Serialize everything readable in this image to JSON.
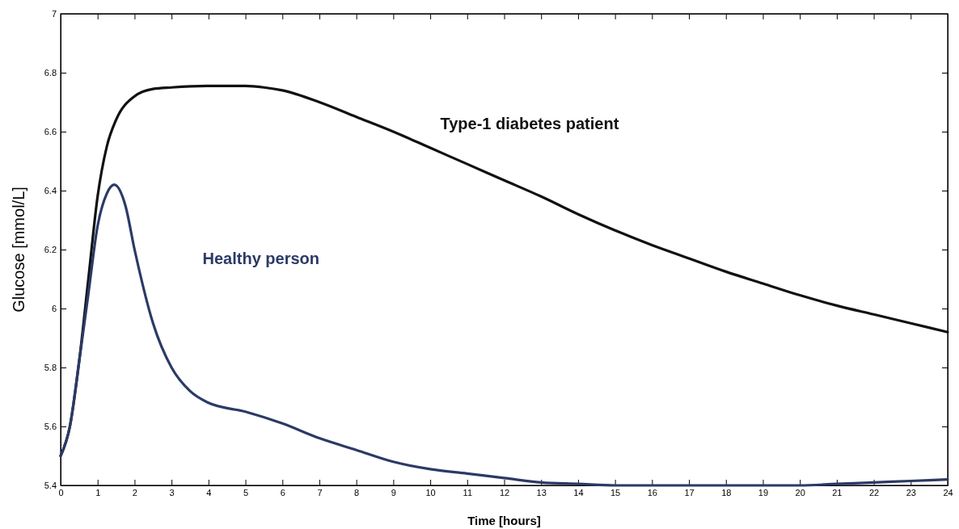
{
  "chart_data": {
    "type": "line",
    "xlabel": "Time [hours]",
    "ylabel": "Glucose [mmol/L]",
    "xlim": [
      0,
      24
    ],
    "xticks": [
      0,
      1,
      2,
      3,
      4,
      5,
      6,
      7,
      8,
      9,
      10,
      11,
      12,
      13,
      14,
      15,
      16,
      17,
      18,
      19,
      20,
      21,
      22,
      23,
      24
    ],
    "ylim": [
      5.4,
      7
    ],
    "yticks": [
      5.4,
      5.6,
      5.8,
      6,
      6.2,
      6.4,
      6.6,
      6.8,
      7
    ],
    "grid": false,
    "legend": false,
    "line_style": "solid",
    "series": [
      {
        "name": "Type-1 diabetes patient",
        "color": "#111111",
        "x": [
          0,
          0.25,
          0.5,
          0.75,
          1,
          1.25,
          1.5,
          2,
          2.5,
          3,
          4,
          5,
          5.5,
          6,
          7,
          8,
          9,
          10,
          11,
          12,
          13,
          14,
          15,
          16,
          17,
          18,
          19,
          20,
          21,
          22,
          23,
          24
        ],
        "values": [
          5.5,
          5.6,
          5.82,
          6.1,
          6.38,
          6.55,
          6.64,
          6.72,
          6.745,
          6.75,
          6.755,
          6.755,
          6.75,
          6.74,
          6.7,
          6.65,
          6.6,
          6.545,
          6.49,
          6.435,
          6.38,
          6.32,
          6.265,
          6.215,
          6.17,
          6.125,
          6.085,
          6.045,
          6.01,
          5.98,
          5.95,
          5.92
        ]
      },
      {
        "name": "Healthy person",
        "color": "#2b3a66",
        "x": [
          0,
          0.25,
          0.5,
          0.75,
          1,
          1.25,
          1.45,
          1.75,
          2,
          2.5,
          3,
          3.5,
          4,
          5,
          6,
          7,
          8,
          9,
          10,
          11,
          12,
          13,
          14,
          15,
          16,
          17,
          18,
          19,
          20,
          21,
          22,
          23,
          24
        ],
        "values": [
          5.5,
          5.6,
          5.82,
          6.05,
          6.28,
          6.39,
          6.42,
          6.35,
          6.2,
          5.95,
          5.8,
          5.72,
          5.68,
          5.65,
          5.61,
          5.56,
          5.52,
          5.48,
          5.455,
          5.44,
          5.425,
          5.41,
          5.405,
          5.4,
          5.4,
          5.4,
          5.4,
          5.4,
          5.4,
          5.405,
          5.41,
          5.415,
          5.42
        ]
      }
    ]
  }
}
